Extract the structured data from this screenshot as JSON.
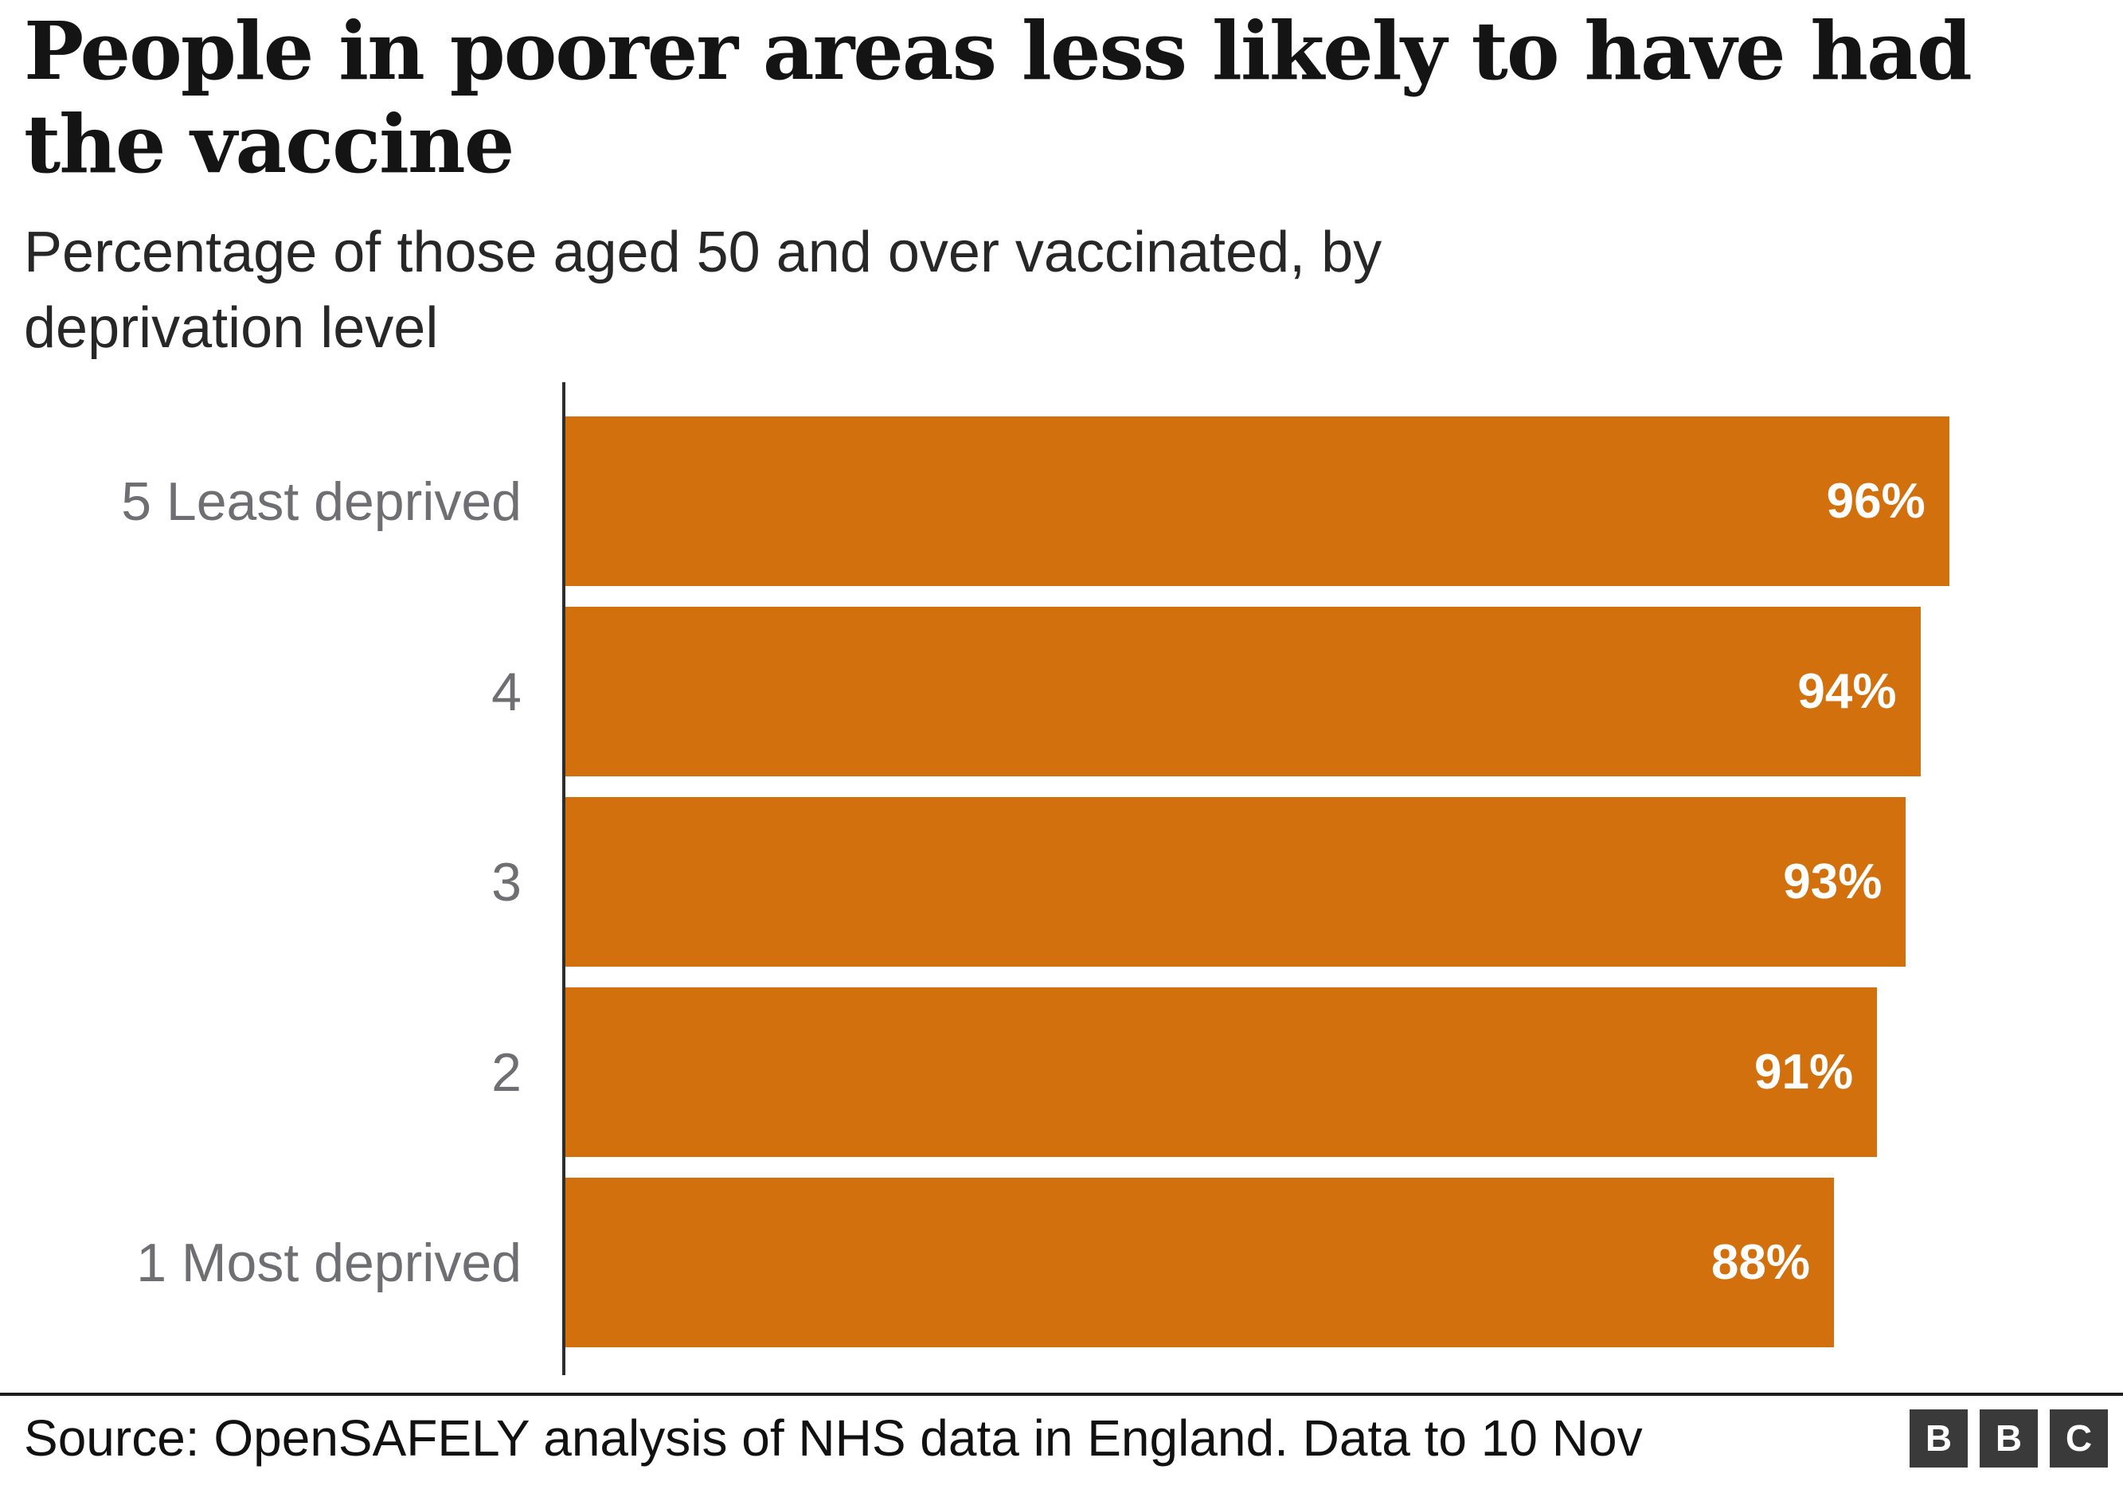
{
  "title": "People in poorer areas less likely to have had the vaccine",
  "subtitle": "Percentage of those aged 50 and over vaccinated, by deprivation level",
  "chart_data": {
    "type": "bar",
    "orientation": "horizontal",
    "title": "People in poorer areas less likely to have had the vaccine",
    "subtitle": "Percentage of those aged 50 and over vaccinated, by deprivation level",
    "categories": [
      "5 Least deprived",
      "4",
      "3",
      "2",
      "1 Most deprived"
    ],
    "values": [
      96,
      94,
      93,
      91,
      88
    ],
    "value_labels": [
      "96%",
      "94%",
      "93%",
      "91%",
      "88%"
    ],
    "xlim": [
      0,
      100
    ],
    "grid": false,
    "legend": "none",
    "value_label_position": "inside-end",
    "bar_color": "#d2700e",
    "value_label_color": "#ffffff",
    "category_label_color": "#6e6e73",
    "axis_line_color": "#2d2d2d"
  },
  "footer": {
    "source": "Source: OpenSAFELY analysis of NHS data in England. Data to 10 Nov",
    "logo_letters": [
      "B",
      "B",
      "C"
    ]
  }
}
